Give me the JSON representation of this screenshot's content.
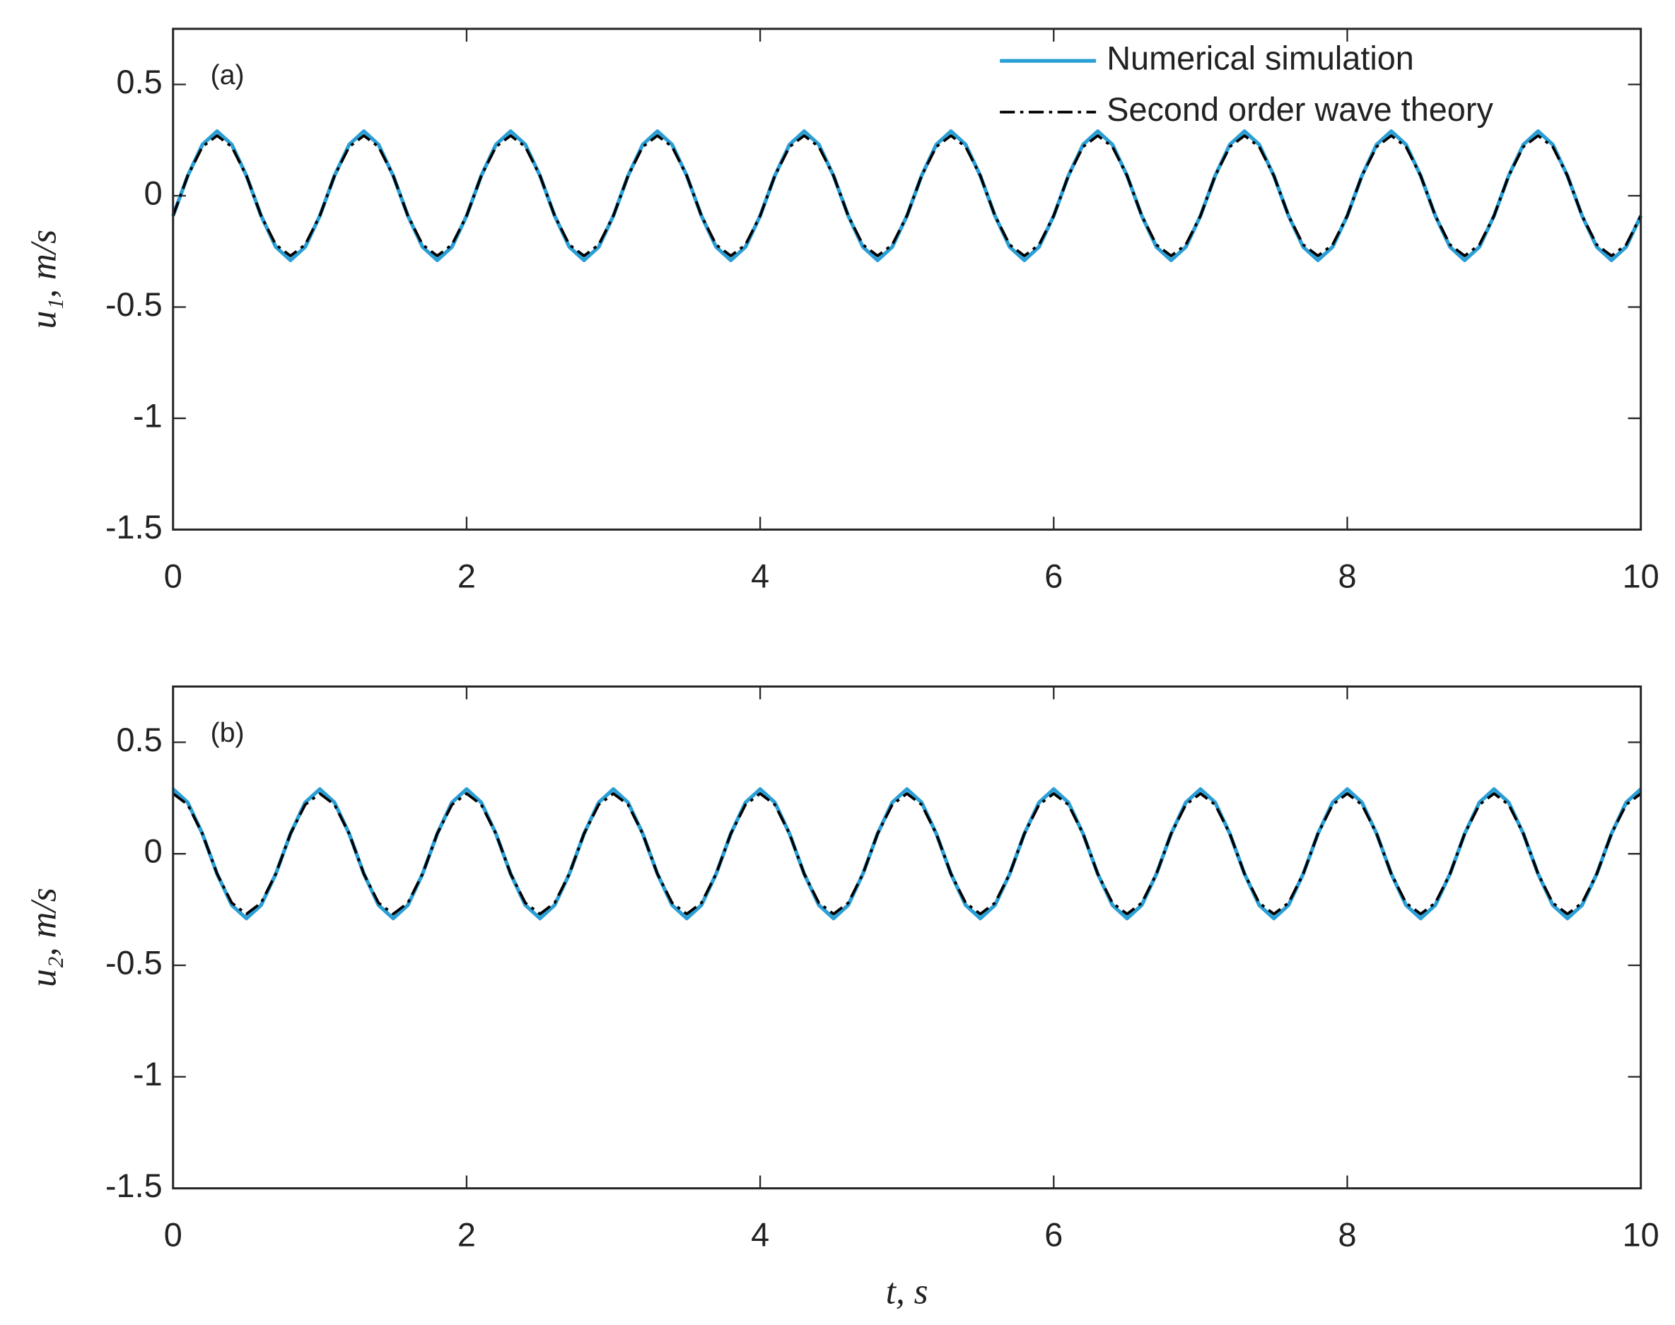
{
  "chart_data": [
    {
      "type": "line",
      "title": "(a)",
      "ylabel": "u₁, m/s",
      "xlim": [
        0,
        10
      ],
      "xticks": [
        0,
        2,
        4,
        6,
        8,
        10
      ],
      "ylim": [
        -1.5,
        0.75
      ],
      "yticks": [
        -1.5,
        -1,
        -0.5,
        0,
        0.5
      ],
      "legend": "upper right",
      "x": [
        0,
        0.1,
        0.2,
        0.3,
        0.4,
        0.5,
        0.6,
        0.7,
        0.8,
        0.9,
        1,
        1.1,
        1.2,
        1.3,
        1.4,
        1.5,
        1.6,
        1.7,
        1.8,
        1.9,
        2,
        2.1,
        2.2,
        2.3,
        2.4,
        2.5,
        2.6,
        2.7,
        2.8,
        2.9,
        3,
        3.1,
        3.2,
        3.3,
        3.4,
        3.5,
        3.6,
        3.7,
        3.8,
        3.9,
        4,
        4.1,
        4.2,
        4.3,
        4.4,
        4.5,
        4.6,
        4.7,
        4.8,
        4.9,
        5,
        5.1,
        5.2,
        5.3,
        5.4,
        5.5,
        5.6,
        5.7,
        5.8,
        5.9,
        6,
        6.1,
        6.2,
        6.3,
        6.4,
        6.5,
        6.6,
        6.7,
        6.8,
        6.9,
        7,
        7.1,
        7.2,
        7.3,
        7.4,
        7.5,
        7.6,
        7.7,
        7.8,
        7.9,
        8,
        8.1,
        8.2,
        8.3,
        8.4,
        8.5,
        8.6,
        8.7,
        8.8,
        8.9,
        9,
        9.1,
        9.2,
        9.3,
        9.4,
        9.5,
        9.6,
        9.7,
        9.8,
        9.9,
        10
      ],
      "series": [
        {
          "name": "Numerical simulation",
          "color": "#2a9fd6",
          "style": "solid",
          "values": [
            -0.09,
            0.09,
            0.23,
            0.29,
            0.23,
            0.09,
            -0.09,
            -0.23,
            -0.29,
            -0.23,
            -0.09,
            0.09,
            0.23,
            0.29,
            0.23,
            0.09,
            -0.09,
            -0.23,
            -0.29,
            -0.23,
            -0.09,
            0.09,
            0.23,
            0.29,
            0.23,
            0.09,
            -0.09,
            -0.23,
            -0.29,
            -0.23,
            -0.09,
            0.09,
            0.23,
            0.29,
            0.23,
            0.09,
            -0.09,
            -0.23,
            -0.29,
            -0.23,
            -0.09,
            0.09,
            0.23,
            0.29,
            0.23,
            0.09,
            -0.09,
            -0.23,
            -0.29,
            -0.23,
            -0.09,
            0.09,
            0.23,
            0.29,
            0.23,
            0.09,
            -0.09,
            -0.23,
            -0.29,
            -0.23,
            -0.09,
            0.09,
            0.23,
            0.29,
            0.23,
            0.09,
            -0.09,
            -0.23,
            -0.29,
            -0.23,
            -0.09,
            0.09,
            0.23,
            0.29,
            0.23,
            0.09,
            -0.09,
            -0.23,
            -0.29,
            -0.23,
            -0.09,
            0.09,
            0.23,
            0.29,
            0.23,
            0.09,
            -0.09,
            -0.23,
            -0.29,
            -0.23,
            -0.09,
            0.09,
            0.23,
            0.29,
            0.23,
            0.09,
            -0.09,
            -0.23,
            -0.29,
            -0.23,
            -0.09
          ]
        },
        {
          "name": "Second order wave theory",
          "color": "#000000",
          "style": "dashdot",
          "values": [
            -0.09,
            0.09,
            0.22,
            0.27,
            0.22,
            0.09,
            -0.09,
            -0.22,
            -0.27,
            -0.22,
            -0.09,
            0.09,
            0.22,
            0.27,
            0.22,
            0.09,
            -0.09,
            -0.22,
            -0.27,
            -0.22,
            -0.09,
            0.09,
            0.22,
            0.27,
            0.22,
            0.09,
            -0.09,
            -0.22,
            -0.27,
            -0.22,
            -0.09,
            0.09,
            0.22,
            0.27,
            0.22,
            0.09,
            -0.09,
            -0.22,
            -0.27,
            -0.22,
            -0.09,
            0.09,
            0.22,
            0.27,
            0.22,
            0.09,
            -0.09,
            -0.22,
            -0.27,
            -0.22,
            -0.09,
            0.09,
            0.22,
            0.27,
            0.22,
            0.09,
            -0.09,
            -0.22,
            -0.27,
            -0.22,
            -0.09,
            0.09,
            0.22,
            0.27,
            0.22,
            0.09,
            -0.09,
            -0.22,
            -0.27,
            -0.22,
            -0.09,
            0.09,
            0.22,
            0.27,
            0.22,
            0.09,
            -0.09,
            -0.22,
            -0.27,
            -0.22,
            -0.09,
            0.09,
            0.22,
            0.27,
            0.22,
            0.09,
            -0.09,
            -0.22,
            -0.27,
            -0.22,
            -0.09,
            0.09,
            0.22,
            0.27,
            0.22,
            0.09,
            -0.09,
            -0.22,
            -0.27,
            -0.22,
            -0.09
          ]
        }
      ]
    },
    {
      "type": "line",
      "title": "(b)",
      "ylabel": "u₂, m/s",
      "xlabel": "t, s",
      "xlim": [
        0,
        10
      ],
      "xticks": [
        0,
        2,
        4,
        6,
        8,
        10
      ],
      "ylim": [
        -1.5,
        0.75
      ],
      "yticks": [
        -1.5,
        -1,
        -0.5,
        0,
        0.5
      ],
      "x": [
        0,
        0.1,
        0.2,
        0.3,
        0.4,
        0.5,
        0.6,
        0.7,
        0.8,
        0.9,
        1,
        1.1,
        1.2,
        1.3,
        1.4,
        1.5,
        1.6,
        1.7,
        1.8,
        1.9,
        2,
        2.1,
        2.2,
        2.3,
        2.4,
        2.5,
        2.6,
        2.7,
        2.8,
        2.9,
        3,
        3.1,
        3.2,
        3.3,
        3.4,
        3.5,
        3.6,
        3.7,
        3.8,
        3.9,
        4,
        4.1,
        4.2,
        4.3,
        4.4,
        4.5,
        4.6,
        4.7,
        4.8,
        4.9,
        5,
        5.1,
        5.2,
        5.3,
        5.4,
        5.5,
        5.6,
        5.7,
        5.8,
        5.9,
        6,
        6.1,
        6.2,
        6.3,
        6.4,
        6.5,
        6.6,
        6.7,
        6.8,
        6.9,
        7,
        7.1,
        7.2,
        7.3,
        7.4,
        7.5,
        7.6,
        7.7,
        7.8,
        7.9,
        8,
        8.1,
        8.2,
        8.3,
        8.4,
        8.5,
        8.6,
        8.7,
        8.8,
        8.9,
        9,
        9.1,
        9.2,
        9.3,
        9.4,
        9.5,
        9.6,
        9.7,
        9.8,
        9.9,
        10
      ],
      "series": [
        {
          "color": "#2a9fd6",
          "style": "solid",
          "values": [
            0.29,
            0.23,
            0.09,
            -0.09,
            -0.23,
            -0.29,
            -0.23,
            -0.09,
            0.09,
            0.23,
            0.29,
            0.23,
            0.09,
            -0.09,
            -0.23,
            -0.29,
            -0.23,
            -0.09,
            0.09,
            0.23,
            0.29,
            0.23,
            0.09,
            -0.09,
            -0.23,
            -0.29,
            -0.23,
            -0.09,
            0.09,
            0.23,
            0.29,
            0.23,
            0.09,
            -0.09,
            -0.23,
            -0.29,
            -0.23,
            -0.09,
            0.09,
            0.23,
            0.29,
            0.23,
            0.09,
            -0.09,
            -0.23,
            -0.29,
            -0.23,
            -0.09,
            0.09,
            0.23,
            0.29,
            0.23,
            0.09,
            -0.09,
            -0.23,
            -0.29,
            -0.23,
            -0.09,
            0.09,
            0.23,
            0.29,
            0.23,
            0.09,
            -0.09,
            -0.23,
            -0.29,
            -0.23,
            -0.09,
            0.09,
            0.23,
            0.29,
            0.23,
            0.09,
            -0.09,
            -0.23,
            -0.29,
            -0.23,
            -0.09,
            0.09,
            0.23,
            0.29,
            0.23,
            0.09,
            -0.09,
            -0.23,
            -0.29,
            -0.23,
            -0.09,
            0.09,
            0.23,
            0.29,
            0.23,
            0.09,
            -0.09,
            -0.23,
            -0.29,
            -0.23,
            -0.09,
            0.09,
            0.23,
            0.29
          ]
        },
        {
          "color": "#000000",
          "style": "dashdot",
          "values": [
            0.27,
            0.22,
            0.09,
            -0.09,
            -0.22,
            -0.27,
            -0.22,
            -0.09,
            0.09,
            0.22,
            0.27,
            0.22,
            0.09,
            -0.09,
            -0.22,
            -0.27,
            -0.22,
            -0.09,
            0.09,
            0.22,
            0.27,
            0.22,
            0.09,
            -0.09,
            -0.22,
            -0.27,
            -0.22,
            -0.09,
            0.09,
            0.22,
            0.27,
            0.22,
            0.09,
            -0.09,
            -0.22,
            -0.27,
            -0.22,
            -0.09,
            0.09,
            0.22,
            0.27,
            0.22,
            0.09,
            -0.09,
            -0.22,
            -0.27,
            -0.22,
            -0.09,
            0.09,
            0.22,
            0.27,
            0.22,
            0.09,
            -0.09,
            -0.22,
            -0.27,
            -0.22,
            -0.09,
            0.09,
            0.22,
            0.27,
            0.22,
            0.09,
            -0.09,
            -0.22,
            -0.27,
            -0.22,
            -0.09,
            0.09,
            0.22,
            0.27,
            0.22,
            0.09,
            -0.09,
            -0.22,
            -0.27,
            -0.22,
            -0.09,
            0.09,
            0.22,
            0.27,
            0.22,
            0.09,
            -0.09,
            -0.22,
            -0.27,
            -0.22,
            -0.09,
            0.09,
            0.22,
            0.27,
            0.22,
            0.09,
            -0.09,
            -0.22,
            -0.27,
            -0.22,
            -0.09,
            0.09,
            0.22,
            0.27
          ]
        }
      ]
    }
  ]
}
